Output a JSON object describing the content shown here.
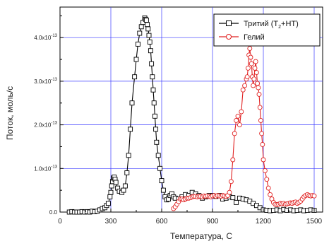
{
  "chart_data": {
    "type": "scatter",
    "title": "",
    "xlabel": "Температура, С",
    "ylabel": "Поток, моль/с",
    "xlim": [
      0,
      1550
    ],
    "ylim": [
      0,
      4.7
    ],
    "y_unit_exponent": "-13",
    "x_ticks": [
      0,
      300,
      600,
      900,
      1200,
      1500
    ],
    "y_ticks": [
      {
        "value": 0,
        "mantissa": "0.0",
        "exp": ""
      },
      {
        "value": 1,
        "mantissa": "1.0x10",
        "exp": "-13"
      },
      {
        "value": 2,
        "mantissa": "2.0x10",
        "exp": "-13"
      },
      {
        "value": 3,
        "mantissa": "3.0x10",
        "exp": "-13"
      },
      {
        "value": 4,
        "mantissa": "4.0x10",
        "exp": "-13"
      }
    ],
    "grid": true,
    "legend_position": "top-right",
    "series": [
      {
        "name": "Тритий (T2+HT)",
        "legend_label": {
          "pre": "Тритий (T",
          "sub": "2",
          "post": "+HT)"
        },
        "color": "#000000",
        "marker": "square",
        "x": [
          55,
          70,
          85,
          100,
          115,
          130,
          145,
          160,
          175,
          190,
          205,
          220,
          235,
          250,
          265,
          275,
          285,
          295,
          300,
          305,
          310,
          315,
          320,
          325,
          330,
          340,
          350,
          365,
          375,
          385,
          395,
          405,
          415,
          425,
          440,
          450,
          460,
          470,
          480,
          490,
          500,
          505,
          510,
          515,
          520,
          525,
          530,
          535,
          540,
          545,
          550,
          555,
          560,
          565,
          570,
          580,
          590,
          600,
          610,
          620,
          630,
          640,
          650,
          660,
          670,
          680,
          700,
          720,
          740,
          760,
          780,
          800,
          820,
          840,
          860,
          880,
          900,
          920,
          940,
          960,
          980,
          1000,
          1020,
          1040,
          1060,
          1080,
          1100,
          1120,
          1140,
          1160,
          1180,
          1200,
          1220,
          1240,
          1260,
          1280,
          1300,
          1320,
          1340,
          1360,
          1380,
          1400,
          1420,
          1440,
          1460,
          1480,
          1500
        ],
        "y": [
          0.0,
          0.01,
          0.0,
          0.0,
          0.0,
          0.01,
          0.0,
          0.01,
          0.0,
          0.02,
          0.01,
          0.02,
          0.05,
          0.08,
          0.1,
          0.15,
          0.2,
          0.35,
          0.45,
          0.6,
          0.7,
          0.78,
          0.8,
          0.75,
          0.68,
          0.55,
          0.48,
          0.45,
          0.5,
          0.6,
          0.9,
          1.3,
          1.9,
          2.5,
          3.1,
          3.5,
          3.85,
          4.1,
          4.25,
          4.35,
          4.45,
          4.42,
          4.4,
          4.3,
          4.2,
          4.05,
          3.9,
          3.7,
          3.4,
          3.1,
          2.8,
          2.5,
          2.2,
          1.9,
          1.6,
          1.3,
          1.0,
          0.72,
          0.5,
          0.35,
          0.28,
          0.3,
          0.38,
          0.42,
          0.35,
          0.32,
          0.3,
          0.35,
          0.4,
          0.38,
          0.45,
          0.42,
          0.38,
          0.32,
          0.35,
          0.38,
          0.38,
          0.36,
          0.38,
          0.3,
          0.32,
          0.35,
          0.33,
          0.22,
          0.32,
          0.3,
          0.28,
          0.25,
          0.2,
          0.15,
          0.1,
          0.05,
          0.04,
          0.03,
          0.04,
          0.05,
          0.03,
          0.06,
          0.04,
          0.05,
          0.03,
          0.04,
          0.05,
          0.03,
          0.04,
          0.05,
          0.04
        ]
      },
      {
        "name": "Гелий",
        "legend_label": {
          "pre": "Гелий",
          "sub": "",
          "post": ""
        },
        "color": "#e02020",
        "marker": "circle",
        "x": [
          670,
          680,
          690,
          700,
          710,
          720,
          730,
          740,
          750,
          760,
          770,
          780,
          790,
          800,
          810,
          820,
          830,
          840,
          850,
          860,
          870,
          880,
          890,
          900,
          910,
          920,
          930,
          940,
          950,
          960,
          970,
          980,
          990,
          1000,
          1010,
          1020,
          1030,
          1040,
          1050,
          1060,
          1070,
          1080,
          1090,
          1100,
          1105,
          1110,
          1115,
          1120,
          1125,
          1130,
          1135,
          1140,
          1145,
          1150,
          1155,
          1160,
          1165,
          1170,
          1175,
          1180,
          1185,
          1190,
          1195,
          1200,
          1210,
          1220,
          1230,
          1240,
          1250,
          1260,
          1270,
          1280,
          1290,
          1300,
          1310,
          1320,
          1330,
          1340,
          1350,
          1360,
          1370,
          1380,
          1390,
          1400,
          1410,
          1420,
          1430,
          1440,
          1450,
          1460,
          1470,
          1480,
          1490,
          1500
        ],
        "y": [
          0.08,
          0.12,
          0.18,
          0.24,
          0.3,
          0.3,
          0.28,
          0.3,
          0.32,
          0.32,
          0.33,
          0.35,
          0.36,
          0.36,
          0.35,
          0.36,
          0.36,
          0.35,
          0.37,
          0.36,
          0.37,
          0.36,
          0.35,
          0.37,
          0.38,
          0.36,
          0.38,
          0.37,
          0.36,
          0.38,
          0.37,
          0.36,
          0.38,
          0.45,
          0.7,
          1.2,
          1.8,
          2.1,
          2.2,
          2.0,
          2.3,
          2.8,
          2.9,
          3.05,
          3.1,
          3.3,
          3.6,
          3.75,
          3.55,
          3.4,
          3.1,
          2.9,
          3.05,
          3.3,
          3.45,
          3.2,
          2.95,
          2.85,
          2.7,
          2.4,
          2.1,
          1.8,
          1.55,
          1.2,
          0.95,
          0.75,
          0.55,
          0.4,
          0.3,
          0.22,
          0.18,
          0.17,
          0.18,
          0.2,
          0.19,
          0.2,
          0.18,
          0.19,
          0.2,
          0.21,
          0.2,
          0.22,
          0.23,
          0.2,
          0.22,
          0.25,
          0.3,
          0.35,
          0.38,
          0.4,
          0.38,
          0.37,
          0.38,
          0.37
        ]
      }
    ]
  }
}
